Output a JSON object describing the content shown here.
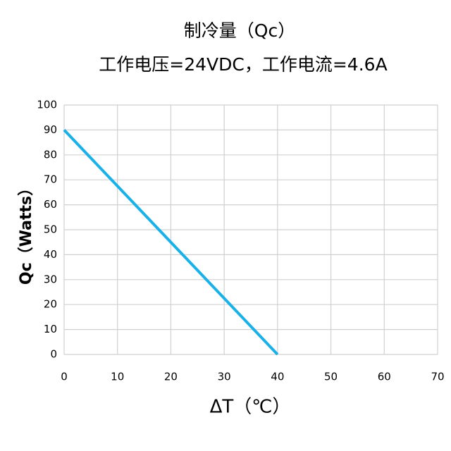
{
  "chart_data": {
    "type": "line",
    "title": "制冷量（Qc）",
    "subtitle": "工作电压=24VDC，工作电流=4.6A",
    "x_label": "ΔT（℃）",
    "y_label": "Qc（Watts）",
    "x": [
      0,
      40
    ],
    "values": [
      90,
      0
    ],
    "color": "#1ab0e8",
    "xlim": [
      0,
      70
    ],
    "xticks": [
      0,
      10,
      20,
      30,
      40,
      50,
      60,
      70
    ],
    "ylim": [
      0,
      100
    ],
    "yticks": [
      0,
      10,
      20,
      30,
      40,
      50,
      60,
      70,
      80,
      90,
      100
    ],
    "grid": true
  }
}
